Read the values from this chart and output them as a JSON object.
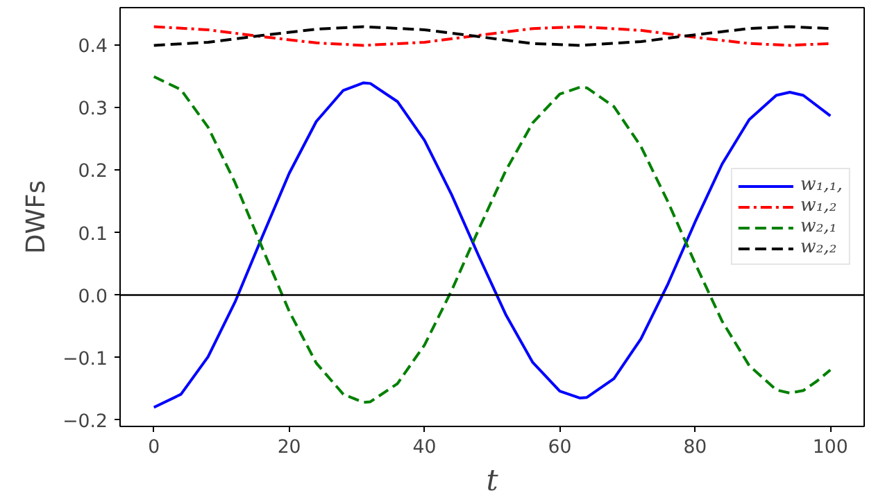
{
  "chart_data": {
    "type": "line",
    "xlabel": "t",
    "ylabel": "DWFs",
    "xlim": [
      -5,
      105
    ],
    "ylim": [
      -0.2105,
      0.4605
    ],
    "xticks": [
      0,
      20,
      40,
      60,
      80,
      100
    ],
    "yticks": [
      {
        "value": -0.2,
        "label": "−0.2"
      },
      {
        "value": -0.1,
        "label": "−0.1"
      },
      {
        "value": 0,
        "label": "0.0"
      },
      {
        "value": 0.1,
        "label": "0.1"
      },
      {
        "value": 0.2,
        "label": "0.2"
      },
      {
        "value": 0.3,
        "label": "0.3"
      },
      {
        "value": 0.4,
        "label": "0.4"
      }
    ],
    "grid": false,
    "legend": "right",
    "marker": "none",
    "ref_lines": [
      {
        "axis": "y",
        "value": 0,
        "color": "#000000",
        "line_style": "solid"
      }
    ],
    "series": [
      {
        "name": "w₁,₁,",
        "color": "#0000ff",
        "line_style": "solid",
        "x": [
          0,
          4,
          8,
          12,
          16,
          20,
          24,
          28,
          31,
          32,
          36,
          40,
          44,
          48,
          52,
          56,
          60,
          63,
          64,
          68,
          72,
          76,
          80,
          84,
          88,
          92,
          94,
          96,
          100
        ],
        "values": [
          -0.18,
          -0.159,
          -0.099,
          -0.011,
          0.093,
          0.195,
          0.278,
          0.328,
          0.34,
          0.339,
          0.31,
          0.248,
          0.161,
          0.063,
          -0.031,
          -0.108,
          -0.154,
          -0.165,
          -0.164,
          -0.134,
          -0.07,
          0.018,
          0.117,
          0.21,
          0.281,
          0.32,
          0.325,
          0.32,
          0.287
        ]
      },
      {
        "name": "w₁,₂",
        "color": "#ff0000",
        "line_style": "dashdot",
        "x": [
          0,
          8,
          16,
          24,
          31,
          40,
          48,
          56,
          63,
          72,
          80,
          88,
          94,
          100
        ],
        "values": [
          0.43,
          0.425,
          0.414,
          0.404,
          0.4,
          0.405,
          0.416,
          0.427,
          0.43,
          0.424,
          0.413,
          0.403,
          0.4,
          0.403
        ]
      },
      {
        "name": "w₂,₁",
        "color": "#008000",
        "line_style": "dashed",
        "x": [
          0,
          4,
          8,
          12,
          16,
          20,
          24,
          28,
          31,
          32,
          36,
          40,
          44,
          48,
          52,
          56,
          60,
          63,
          64,
          68,
          72,
          76,
          80,
          84,
          88,
          92,
          94,
          96,
          98,
          100
        ],
        "values": [
          0.35,
          0.329,
          0.269,
          0.18,
          0.076,
          -0.026,
          -0.109,
          -0.159,
          -0.172,
          -0.171,
          -0.142,
          -0.08,
          0.007,
          0.105,
          0.199,
          0.276,
          0.322,
          0.333,
          0.332,
          0.302,
          0.238,
          0.149,
          0.051,
          -0.042,
          -0.113,
          -0.152,
          -0.157,
          -0.153,
          -0.138,
          -0.12
        ]
      },
      {
        "name": "w₂,₂",
        "color": "#000000",
        "line_style": "dashed",
        "x": [
          0,
          8,
          16,
          24,
          31,
          40,
          48,
          56,
          63,
          72,
          80,
          88,
          94,
          100
        ],
        "values": [
          0.4,
          0.405,
          0.416,
          0.426,
          0.43,
          0.425,
          0.414,
          0.403,
          0.4,
          0.406,
          0.417,
          0.427,
          0.43,
          0.427
        ]
      }
    ]
  }
}
